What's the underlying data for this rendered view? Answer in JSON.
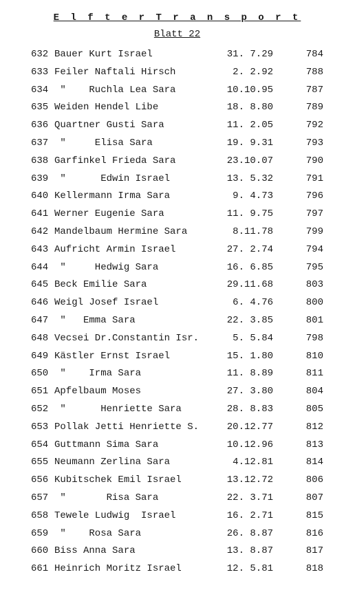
{
  "title": "E l f t e r  T r a n s p o r t",
  "subtitle": "Blatt 22",
  "rows": [
    {
      "n": "632",
      "name": "Bauer Kurt Israel",
      "date": "31. 7.29",
      "r": "784"
    },
    {
      "n": "633",
      "name": "Feiler Naftali Hirsch",
      "date": " 2. 2.92",
      "r": "788"
    },
    {
      "n": "634",
      "name": " \"    Ruchla Lea Sara",
      "date": "10.10.95",
      "r": "787"
    },
    {
      "n": "635",
      "name": "Weiden Hendel Libe",
      "date": "18. 8.80",
      "r": "789"
    },
    {
      "n": "636",
      "name": "Quartner Gusti Sara",
      "date": "11. 2.05",
      "r": "792"
    },
    {
      "n": "637",
      "name": " \"     Elisa Sara",
      "date": "19. 9.31",
      "r": "793"
    },
    {
      "n": "638",
      "name": "Garfinkel Frieda Sara",
      "date": "23.10.07",
      "r": "790"
    },
    {
      "n": "639",
      "name": " \"      Edwin Israel",
      "date": "13. 5.32",
      "r": "791"
    },
    {
      "n": "640",
      "name": "Kellermann Irma Sara",
      "date": " 9. 4.73",
      "r": "796"
    },
    {
      "n": "641",
      "name": "Werner Eugenie Sara",
      "date": "11. 9.75",
      "r": "797"
    },
    {
      "n": "642",
      "name": "Mandelbaum Hermine Sara",
      "date": " 8.11.78",
      "r": "799"
    },
    {
      "n": "643",
      "name": "Aufricht Armin Israel",
      "date": "27. 2.74",
      "r": "794"
    },
    {
      "n": "644",
      "name": " \"     Hedwig Sara",
      "date": "16. 6.85",
      "r": "795"
    },
    {
      "n": "645",
      "name": "Beck Emilie Sara",
      "date": "29.11.68",
      "r": "803"
    },
    {
      "n": "646",
      "name": "Weigl Josef Israel",
      "date": " 6. 4.76",
      "r": "800"
    },
    {
      "n": "647",
      "name": " \"   Emma Sara",
      "date": "22. 3.85",
      "r": "801"
    },
    {
      "n": "648",
      "name": "Vecsei Dr.Constantin Isr.",
      "date": " 5. 5.84",
      "r": "798"
    },
    {
      "n": "649",
      "name": "Kästler Ernst Israel",
      "date": "15. 1.80",
      "r": "810"
    },
    {
      "n": "650",
      "name": " \"    Irma Sara",
      "date": "11. 8.89",
      "r": "811"
    },
    {
      "n": "651",
      "name": "Apfelbaum Moses",
      "date": "27. 3.80",
      "r": "804"
    },
    {
      "n": "652",
      "name": " \"      Henriette Sara",
      "date": "28. 8.83",
      "r": "805"
    },
    {
      "n": "653",
      "name": "Pollak Jetti Henriette S.",
      "date": "20.12.77",
      "r": "812"
    },
    {
      "n": "654",
      "name": "Guttmann Sima Sara",
      "date": "10.12.96",
      "r": "813"
    },
    {
      "n": "655",
      "name": "Neumann Zerlina Sara",
      "date": " 4.12.81",
      "r": "814"
    },
    {
      "n": "656",
      "name": "Kubitschek Emil Israel",
      "date": "13.12.72",
      "r": "806"
    },
    {
      "n": "657",
      "name": " \"       Risa Sara",
      "date": "22. 3.71",
      "r": "807"
    },
    {
      "n": "658",
      "name": "Tewele Ludwig  Israel",
      "date": "16. 2.71",
      "r": "815"
    },
    {
      "n": "659",
      "name": " \"    Rosa Sara",
      "date": "26. 8.87",
      "r": "816"
    },
    {
      "n": "660",
      "name": "Biss Anna Sara",
      "date": "13. 8.87",
      "r": "817"
    },
    {
      "n": "661",
      "name": "Heinrich Moritz Israel",
      "date": "12. 5.81",
      "r": "818"
    }
  ]
}
